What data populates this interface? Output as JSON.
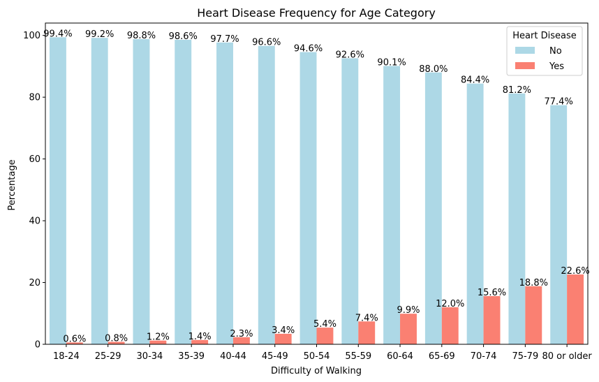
{
  "chart_data": {
    "type": "bar",
    "title": "Heart Disease Frequency for Age Category",
    "xlabel": "Difficulty of Walking",
    "ylabel": "Percentage",
    "ylim": [
      0,
      104
    ],
    "yticks": [
      0,
      20,
      40,
      60,
      80,
      100
    ],
    "categories": [
      "18-24",
      "25-29",
      "30-34",
      "35-39",
      "40-44",
      "45-49",
      "50-54",
      "55-59",
      "60-64",
      "65-69",
      "70-74",
      "75-79",
      "80 or older"
    ],
    "series": [
      {
        "name": "No",
        "color": "#add8e6",
        "values": [
          99.4,
          99.2,
          98.8,
          98.6,
          97.7,
          96.6,
          94.6,
          92.6,
          90.1,
          88.0,
          84.4,
          81.2,
          77.4
        ]
      },
      {
        "name": "Yes",
        "color": "#fa8072",
        "values": [
          0.6,
          0.8,
          1.2,
          1.4,
          2.3,
          3.4,
          5.4,
          7.4,
          9.9,
          12.0,
          15.6,
          18.8,
          22.6
        ]
      }
    ],
    "legend": {
      "title": "Heart Disease",
      "position": "top-right"
    },
    "grid": false
  }
}
